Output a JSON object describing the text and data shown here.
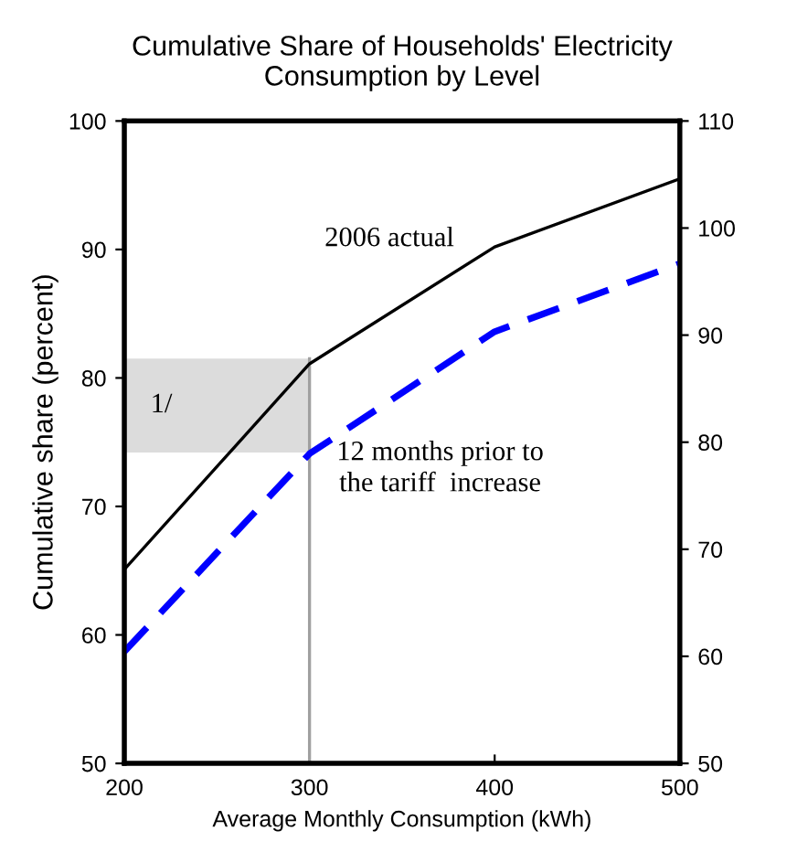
{
  "chart_data": {
    "type": "line",
    "title": "Cumulative Share of Households' Electricity\nConsumption by Level",
    "xlabel": "Average Monthly Consumption (kWh)",
    "ylabel": "Cumulative share (percent)",
    "x": [
      200,
      300,
      400,
      500
    ],
    "series": [
      {
        "name": "2006 actual",
        "color": "#000000",
        "line_style": "solid",
        "values": [
          65.1,
          81.1,
          90.2,
          95.5
        ]
      },
      {
        "name": "12 months prior to\nthe tariff  increase",
        "color": "#0000ff",
        "line_style": "dashed",
        "values": [
          58.7,
          74.1,
          83.6,
          88.9
        ]
      }
    ],
    "xlim": [
      200,
      500
    ],
    "xticks": [
      200,
      300,
      400,
      500
    ],
    "ylim": [
      50,
      100
    ],
    "yticks": [
      50,
      60,
      70,
      80,
      90,
      100
    ],
    "y2lim": [
      50,
      110
    ],
    "y2ticks": [
      50,
      60,
      70,
      80,
      90,
      100,
      110
    ],
    "ref_lines": [
      {
        "axis": "x",
        "value": 300,
        "color": "#a0a0a0"
      }
    ],
    "bands": [
      {
        "axis": "y",
        "from": 74.2,
        "to": 81.5,
        "color": "#dcdcdc"
      }
    ],
    "annotations": [
      "1/"
    ],
    "grid": false,
    "legend": false,
    "marker": "none"
  }
}
